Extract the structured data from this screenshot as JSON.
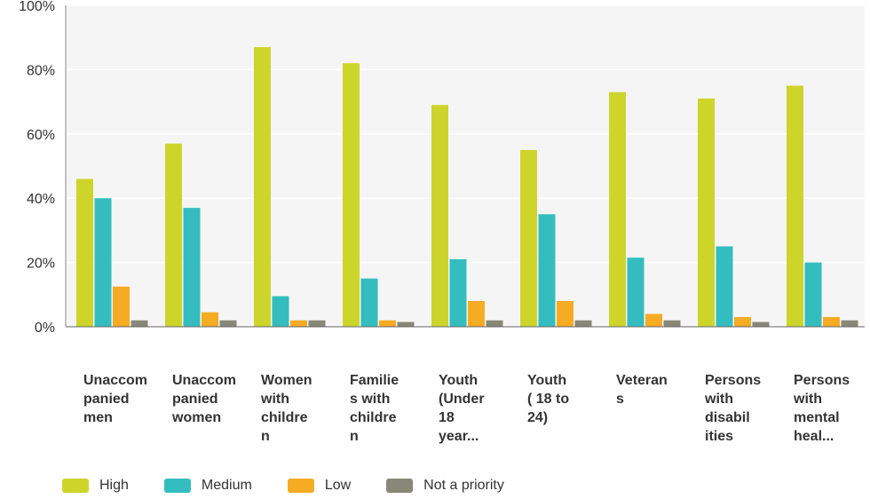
{
  "chart_data": {
    "type": "bar",
    "categories": [
      "Unaccom\npanied\nmen",
      "Unaccom\npanied\nwomen",
      "Women\nwith\nchildre\nn",
      "Familie\ns with\nchildre\nn",
      "Youth\n(Under\n18\nyear...",
      "Youth\n( 18 to\n24)",
      "Veteran\ns",
      "Persons\nwith\ndisabil\nities",
      "Persons\nwith\nmental\nheal..."
    ],
    "series": [
      {
        "name": "High",
        "color": "#cdd52b",
        "values": [
          46,
          57,
          87,
          82,
          69,
          55,
          73,
          71,
          75
        ]
      },
      {
        "name": "Medium",
        "color": "#34bdbf",
        "values": [
          40,
          37,
          9.5,
          15,
          21,
          35,
          21.5,
          25,
          20
        ]
      },
      {
        "name": "Low",
        "color": "#f5ab22",
        "values": [
          12.5,
          4.5,
          2,
          2,
          8,
          8,
          4,
          3,
          3
        ]
      },
      {
        "name": "Not a priority",
        "color": "#888878",
        "values": [
          2,
          2,
          2,
          1.5,
          2,
          2,
          2,
          1.5,
          2
        ]
      }
    ],
    "ylim": [
      0,
      100
    ],
    "yticks": [
      "0%",
      "20%",
      "40%",
      "60%",
      "80%",
      "100%"
    ],
    "grid": true,
    "legend_position": "bottom"
  }
}
